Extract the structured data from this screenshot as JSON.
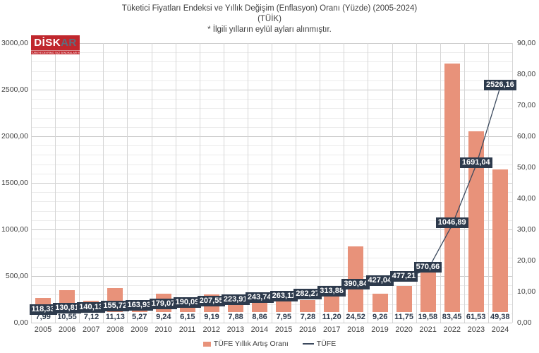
{
  "title": {
    "line1": "Tüketici Fiyatları Endeksi ve Yıllık Değişim (Enflasyon) Oranı (Yüzde) (2005-2024)",
    "line2": "(TÜİK)",
    "line3": "* İlgili yılların eylül ayları alınmıştır."
  },
  "logo": {
    "disk": "DİSK",
    "ar": "AR",
    "tagline": "TÜRKİYE DEVRİMCİ İŞÇİ SENDİKALARI KONFEDERASYONU ARAŞTIRMA MERKEZİ",
    "bg_color": "#c0272d"
  },
  "legend": {
    "bar_label": "TÜFE Yıllık Artış Oranı",
    "line_label": "TÜFE"
  },
  "colors": {
    "bar": "#E8927A",
    "line": "#3c4a5e",
    "label_box": "#2d3a4c",
    "gridline_minor": "#ebebeb",
    "gridline_major": "#c9c9c9",
    "gridline_vertical": "#d6d6d6"
  },
  "chart_data": {
    "type": "bar",
    "subtype": "combo bar+line, dual axis",
    "categories": [
      "2005",
      "2006",
      "2007",
      "2008",
      "2009",
      "2010",
      "2011",
      "2012",
      "2013",
      "2014",
      "2015",
      "2016",
      "2017",
      "2018",
      "2019",
      "2020",
      "2021",
      "2022",
      "2023",
      "2024"
    ],
    "series": [
      {
        "name": "TÜFE Yıllık Artış Oranı",
        "type": "bar",
        "axis": "right",
        "values": [
          7.99,
          10.55,
          7.12,
          11.13,
          5.27,
          9.24,
          6.15,
          9.19,
          7.88,
          8.86,
          7.95,
          7.28,
          11.2,
          24.52,
          9.26,
          11.75,
          19.58,
          83.45,
          61.53,
          49.38
        ],
        "labels": [
          "7,99",
          "10,55",
          "7,12",
          "11,13",
          "5,27",
          "9,24",
          "6,15",
          "9,19",
          "7,88",
          "8,86",
          "7,95",
          "7,28",
          "11,20",
          "24,52",
          "9,26",
          "11,75",
          "19,58",
          "83,45",
          "61,53",
          "49,38"
        ]
      },
      {
        "name": "TÜFE",
        "type": "line",
        "axis": "left",
        "values": [
          118.33,
          130.81,
          140.13,
          155.72,
          163.93,
          179.07,
          190.09,
          207.55,
          223.91,
          243.74,
          263.11,
          282.27,
          313.88,
          390.84,
          427.04,
          477.21,
          570.66,
          1046.89,
          1691.04,
          2526.16
        ],
        "labels": [
          "118,33",
          "130,81",
          "140,13",
          "155,72",
          "163,93",
          "179,07",
          "190,09",
          "207,55",
          "223,91",
          "243,74",
          "263,11",
          "282,27",
          "313,88",
          "390,84",
          "427,04",
          "477,21",
          "570,66",
          "1046,89",
          "1691,04",
          "2526,16"
        ]
      }
    ],
    "left_axis": {
      "range": [
        0,
        3000
      ],
      "major_unit": 500,
      "minor_unit": 100,
      "tick_labels": [
        "0,00",
        "500,00",
        "1000,00",
        "1500,00",
        "2000,00",
        "2500,00",
        "3000,00"
      ]
    },
    "right_axis": {
      "range": [
        0,
        90
      ],
      "major_unit": 10,
      "tick_labels": [
        "0,00",
        "10,00",
        "20,00",
        "30,00",
        "40,00",
        "50,00",
        "60,00",
        "70,00",
        "80,00",
        "90,00"
      ]
    },
    "grid": true,
    "legend_position": "bottom"
  }
}
